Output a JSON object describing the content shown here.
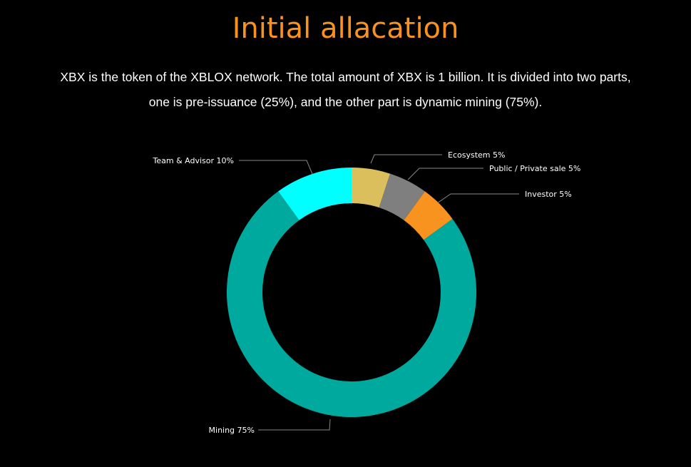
{
  "title": "Initial allacation",
  "description": {
    "line1": "XBX is the token of the XBLOX network. The total amount of XBX is 1 billion. It is divided into two parts,",
    "line2": "one is pre-issuance (25%), and the other part is dynamic mining (75%)."
  },
  "chart_data": {
    "type": "pie",
    "variant": "donut",
    "title": "",
    "series": [
      {
        "name": "Ecosystem",
        "value": 5,
        "label": "Ecosystem 5%",
        "color": "#dbbf5c"
      },
      {
        "name": "Public / Private sale",
        "value": 5,
        "label": "Public / Private sale 5%",
        "color": "#7f7f7f"
      },
      {
        "name": "Investor",
        "value": 5,
        "label": "Investor 5%",
        "color": "#f7931e"
      },
      {
        "name": "Mining",
        "value": 75,
        "label": "Mining 75%",
        "color": "#00a99d"
      },
      {
        "name": "Team & Advisor",
        "value": 10,
        "label": "Team & Advisor 10%",
        "color": "#00ffff"
      }
    ],
    "legend": "none",
    "start": "top",
    "direction": "clockwise"
  },
  "colors": {
    "background": "#000000",
    "title": "#f7931e",
    "text": "#ffffff",
    "leader_line": "#888888"
  }
}
